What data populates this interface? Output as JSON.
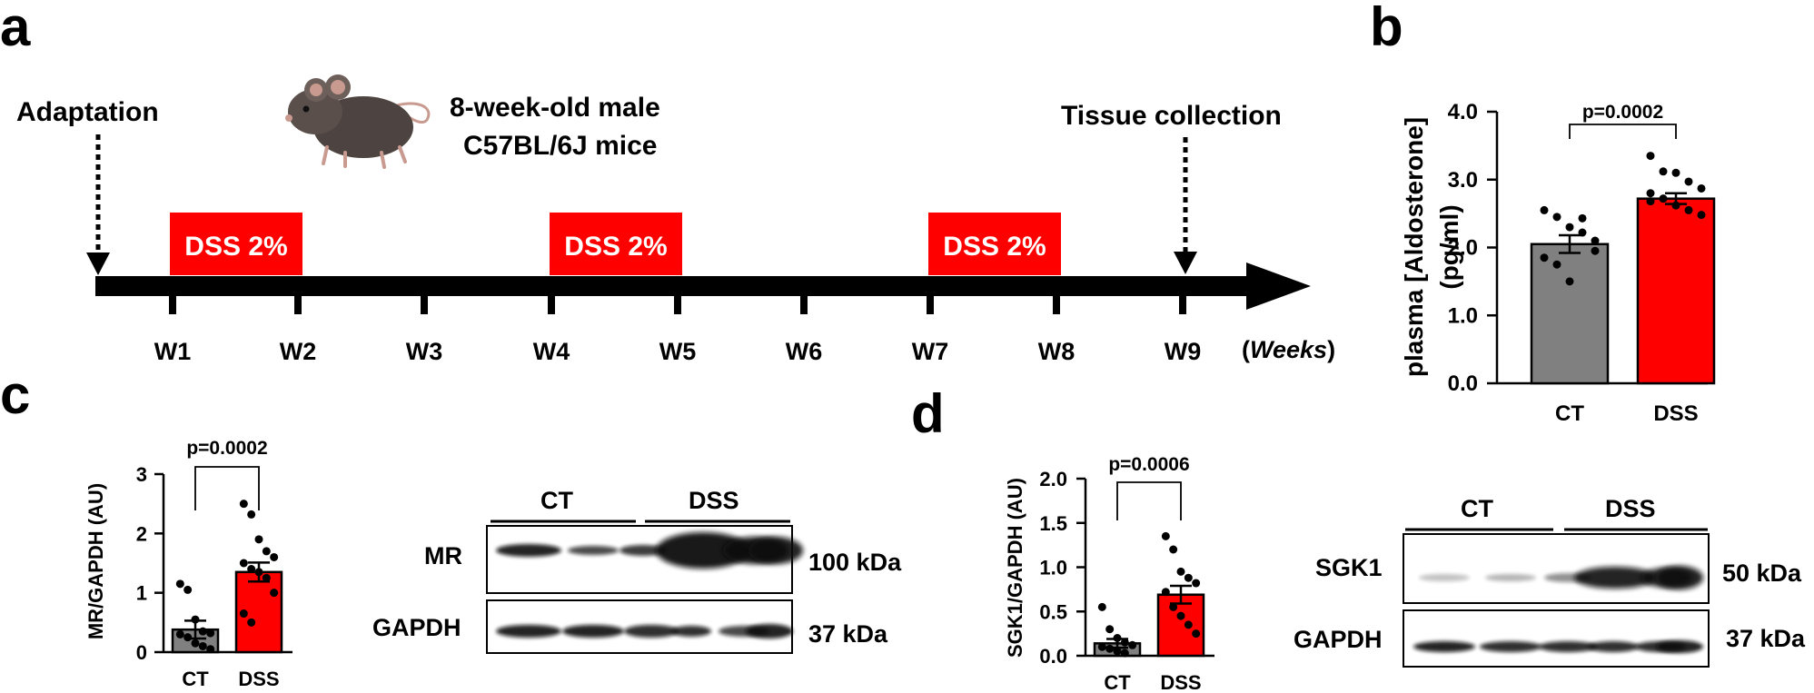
{
  "panels": {
    "a": "a",
    "b": "b",
    "c": "c",
    "d": "d"
  },
  "timeline": {
    "adaptation": "Adaptation",
    "mouse_line1": "8-week-old male",
    "mouse_line2": "C57BL/6J mice",
    "tissue": "Tissue collection",
    "dss_label": "DSS 2%",
    "dss_color": "#ff0000",
    "weeks": [
      "W1",
      "W2",
      "W3",
      "W4",
      "W5",
      "W6",
      "W7",
      "W8",
      "W9"
    ],
    "unit_open": "(",
    "unit_word": "Weeks",
    "unit_close": ")"
  },
  "colors": {
    "ct": "#808080",
    "dss": "#ff0000"
  },
  "chart_data": [
    {
      "panel": "b",
      "type": "bar",
      "categories": [
        "CT",
        "DSS"
      ],
      "values": [
        2.05,
        2.72
      ],
      "sem": [
        0.13,
        0.08
      ],
      "points": [
        [
          2.55,
          2.45,
          2.3,
          2.22,
          2.1,
          1.85,
          1.75,
          1.5,
          2.43,
          1.95
        ],
        [
          3.35,
          3.12,
          3.1,
          2.97,
          2.87,
          2.8,
          2.72,
          2.62,
          2.55,
          2.48,
          2.68
        ]
      ],
      "ylabel_line1": "plasma [Aldosterone]",
      "ylabel_line2": "(pg/ml)",
      "ylim": [
        0,
        4
      ],
      "yticks": [
        "0.0",
        "1.0",
        "2.0",
        "3.0",
        "4.0"
      ],
      "pvalue": "p=0.0002"
    },
    {
      "panel": "c",
      "type": "bar",
      "categories": [
        "CT",
        "DSS"
      ],
      "values": [
        0.38,
        1.35
      ],
      "sem": [
        0.15,
        0.16
      ],
      "points": [
        [
          1.15,
          1.05,
          0.55,
          0.35,
          0.32,
          0.3,
          0.25,
          0.15,
          0.1,
          0.05
        ],
        [
          2.5,
          2.32,
          1.9,
          1.7,
          1.6,
          1.5,
          1.4,
          1.35,
          1.25,
          1.0,
          0.65,
          0.5
        ]
      ],
      "ylabel": "MR/GAPDH (AU)",
      "ylim": [
        0,
        3
      ],
      "yticks": [
        "0",
        "1",
        "2",
        "3"
      ],
      "pvalue": "p=0.0002"
    },
    {
      "panel": "d",
      "type": "bar",
      "categories": [
        "CT",
        "DSS"
      ],
      "values": [
        0.14,
        0.69
      ],
      "sem": [
        0.05,
        0.1
      ],
      "points": [
        [
          0.55,
          0.3,
          0.2,
          0.15,
          0.12,
          0.1,
          0.08,
          0.05,
          0.03
        ],
        [
          1.35,
          1.2,
          0.95,
          0.88,
          0.82,
          0.72,
          0.55,
          0.45,
          0.35,
          0.25
        ]
      ],
      "ylabel": "SGK1/GAPDH (AU)",
      "ylim": [
        0,
        2
      ],
      "yticks": [
        "0.0",
        "0.5",
        "1.0",
        "1.5",
        "2.0"
      ],
      "pvalue": "p=0.0006"
    }
  ],
  "blot_c": {
    "group_ct": "CT",
    "group_dss": "DSS",
    "protein": "MR",
    "protein_kda": "100 kDa",
    "loading": "GAPDH",
    "loading_kda": "37 kDa"
  },
  "blot_d": {
    "group_ct": "CT",
    "group_dss": "DSS",
    "protein": "SGK1",
    "protein_kda": "50 kDa",
    "loading": "GAPDH",
    "loading_kda": "37 kDa"
  }
}
